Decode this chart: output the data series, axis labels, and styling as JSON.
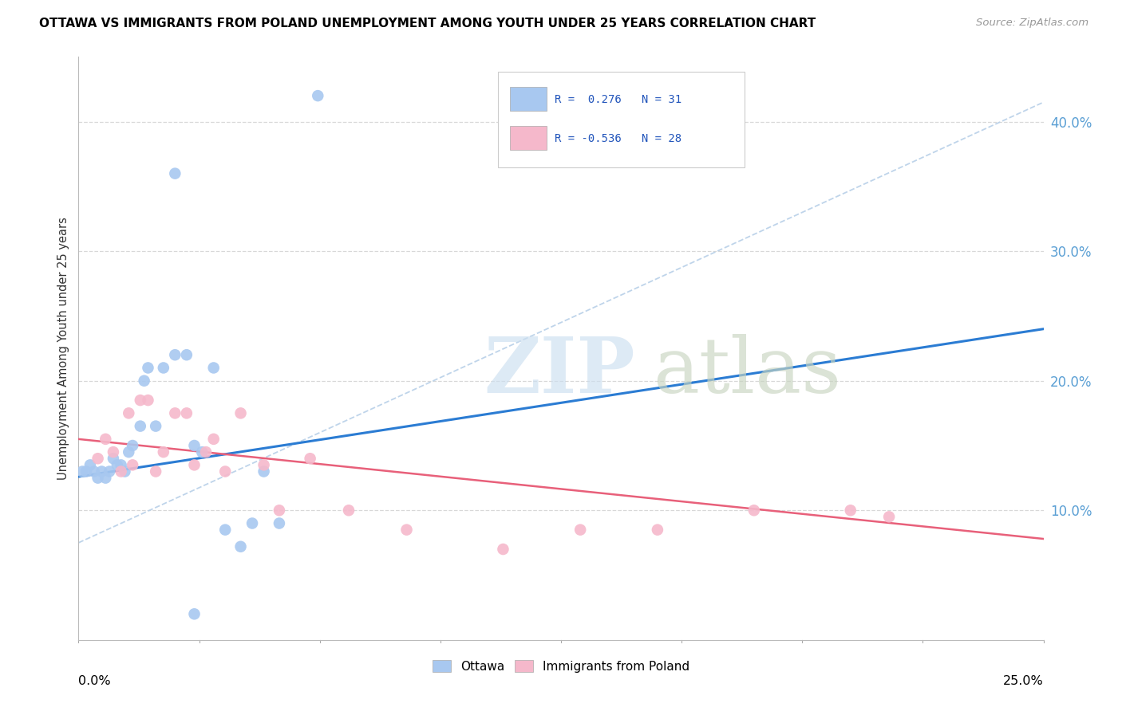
{
  "title": "OTTAWA VS IMMIGRANTS FROM POLAND UNEMPLOYMENT AMONG YOUTH UNDER 25 YEARS CORRELATION CHART",
  "source": "Source: ZipAtlas.com",
  "ylabel": "Unemployment Among Youth under 25 years",
  "r_ottawa": 0.276,
  "n_ottawa": 31,
  "r_poland": -0.536,
  "n_poland": 28,
  "ottawa_color": "#a8c8f0",
  "poland_color": "#f5b8cb",
  "ottawa_line_color": "#2b7cd3",
  "poland_line_color": "#e8607a",
  "diag_line_color": "#b8d0e8",
  "grid_color": "#d8d8d8",
  "right_tick_color": "#5a9fd4",
  "xlim": [
    0.0,
    0.25
  ],
  "ylim": [
    0.0,
    0.45
  ],
  "grid_vals": [
    0.1,
    0.2,
    0.3,
    0.4
  ],
  "ottawa_x": [
    0.001,
    0.002,
    0.003,
    0.004,
    0.005,
    0.006,
    0.007,
    0.008,
    0.009,
    0.01,
    0.011,
    0.012,
    0.013,
    0.014,
    0.016,
    0.017,
    0.018,
    0.02,
    0.022,
    0.025,
    0.028,
    0.03,
    0.03,
    0.032,
    0.035,
    0.038,
    0.042,
    0.045,
    0.048,
    0.052,
    0.062
  ],
  "ottawa_y": [
    0.13,
    0.13,
    0.135,
    0.13,
    0.125,
    0.13,
    0.125,
    0.13,
    0.14,
    0.135,
    0.135,
    0.13,
    0.145,
    0.15,
    0.165,
    0.2,
    0.21,
    0.165,
    0.21,
    0.22,
    0.22,
    0.15,
    0.02,
    0.145,
    0.21,
    0.085,
    0.072,
    0.09,
    0.13,
    0.09,
    0.42
  ],
  "ottawa_x2": [
    0.025
  ],
  "ottawa_y2": [
    0.36
  ],
  "poland_x": [
    0.005,
    0.007,
    0.009,
    0.011,
    0.013,
    0.014,
    0.016,
    0.018,
    0.02,
    0.022,
    0.025,
    0.028,
    0.03,
    0.033,
    0.035,
    0.038,
    0.042,
    0.048,
    0.052,
    0.06,
    0.07,
    0.085,
    0.11,
    0.13,
    0.15,
    0.175,
    0.2,
    0.21
  ],
  "poland_y": [
    0.14,
    0.155,
    0.145,
    0.13,
    0.175,
    0.135,
    0.185,
    0.185,
    0.13,
    0.145,
    0.175,
    0.175,
    0.135,
    0.145,
    0.155,
    0.13,
    0.175,
    0.135,
    0.1,
    0.14,
    0.1,
    0.085,
    0.07,
    0.085,
    0.085,
    0.1,
    0.1,
    0.095
  ],
  "ottawa_trendline": [
    [
      0.0,
      0.25
    ],
    [
      0.126,
      0.24
    ]
  ],
  "poland_trendline": [
    [
      0.0,
      0.25
    ],
    [
      0.155,
      0.078
    ]
  ],
  "diag_trendline": [
    [
      0.0,
      0.25
    ],
    [
      0.075,
      0.415
    ]
  ]
}
